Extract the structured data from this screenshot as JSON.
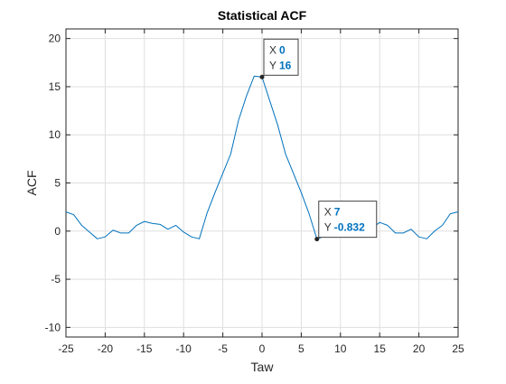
{
  "chart_data": {
    "type": "line",
    "title": "Statistical ACF",
    "xlabel": "Taw",
    "ylabel": "ACF",
    "xlim": [
      -25,
      25
    ],
    "ylim": [
      -11,
      21
    ],
    "xticks": [
      -25,
      -20,
      -15,
      -10,
      -5,
      0,
      5,
      10,
      15,
      20,
      25
    ],
    "yticks": [
      -10,
      -5,
      0,
      5,
      10,
      15,
      20
    ],
    "grid": true,
    "series": [
      {
        "color": "#0072bd",
        "x": [
          -25,
          -24,
          -23,
          -22,
          -21,
          -20,
          -19,
          -18,
          -17,
          -16,
          -15,
          -14,
          -13,
          -12,
          -11,
          -10,
          -9,
          -8,
          -7,
          -6,
          -5,
          -4,
          -3,
          -2,
          -1,
          0,
          1,
          2,
          3,
          4,
          5,
          6,
          7,
          8,
          9,
          10,
          11,
          12,
          13,
          14,
          15,
          16,
          17,
          18,
          19,
          20,
          21,
          22,
          23,
          24,
          25
        ],
        "y": [
          2.0,
          1.7,
          0.6,
          -0.1,
          -0.8,
          -0.6,
          0.1,
          -0.2,
          -0.2,
          0.6,
          1.0,
          0.8,
          0.7,
          0.2,
          0.6,
          -0.1,
          -0.6,
          -0.8,
          1.9,
          4.0,
          6.0,
          8.0,
          11.5,
          14.0,
          16.1,
          16.0,
          13.5,
          11.0,
          8.0,
          6.0,
          4.0,
          1.8,
          -0.832,
          -0.5,
          0.6,
          1.1,
          0.4,
          -0.2,
          0.2,
          0.3,
          0.9,
          0.6,
          -0.2,
          -0.2,
          0.2,
          -0.6,
          -0.8,
          0.0,
          0.6,
          1.8,
          2.0
        ]
      }
    ],
    "datatips": [
      {
        "x_key": "X",
        "x_value": "0",
        "y_key": "Y",
        "y_value": "16",
        "px": 0,
        "py": 16
      },
      {
        "x_key": "X",
        "x_value": "7",
        "y_key": "Y",
        "y_value": "-0.832",
        "px": 7,
        "py": -0.832
      }
    ]
  }
}
